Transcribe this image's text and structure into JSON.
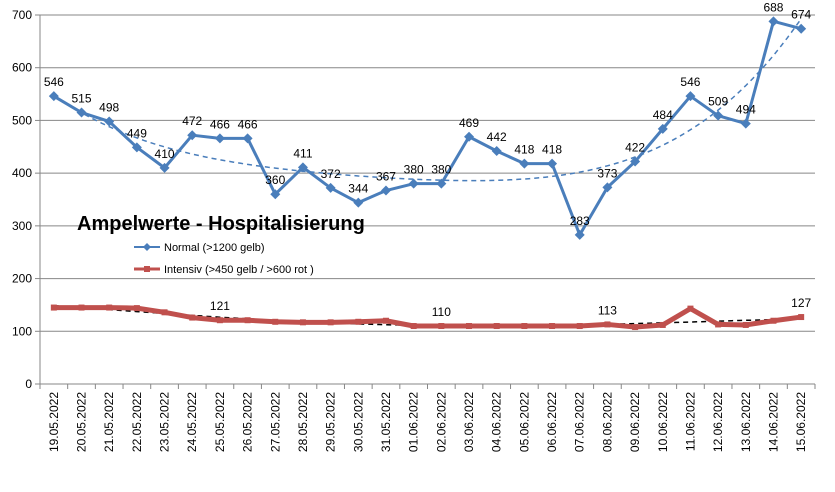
{
  "chart_data": {
    "type": "line",
    "title": "Ampelwerte - Hospitalisierung",
    "ylim": [
      0,
      700
    ],
    "yticks": [
      0,
      100,
      200,
      300,
      400,
      500,
      600,
      700
    ],
    "grid": "horizontal",
    "legend_position": "left-center",
    "categories": [
      "19.05.2022",
      "20.05.2022",
      "21.05.2022",
      "22.05.2022",
      "23.05.2022",
      "24.05.2022",
      "25.05.2022",
      "26.05.2022",
      "27.05.2022",
      "28.05.2022",
      "29.05.2022",
      "30.05.2022",
      "31.05.2022",
      "01.06.2022",
      "02.06.2022",
      "03.06.2022",
      "04.06.2022",
      "05.06.2022",
      "06.06.2022",
      "07.06.2022",
      "08.06.2022",
      "09.06.2022",
      "10.06.2022",
      "11.06.2022",
      "12.06.2022",
      "13.06.2022",
      "14.06.2022",
      "15.06.2022"
    ],
    "series": [
      {
        "name": "Normal (>1200 gelb)",
        "color": "#4a7ebb",
        "marker": "diamond",
        "values": [
          546,
          515,
          498,
          449,
          410,
          472,
          466,
          466,
          360,
          411,
          372,
          344,
          367,
          380,
          380,
          469,
          442,
          418,
          418,
          283,
          373,
          422,
          484,
          546,
          509,
          494,
          688,
          674
        ],
        "labels": [
          "546",
          "515",
          "498",
          "449",
          "410",
          "472",
          "466",
          "466",
          "360",
          "411",
          "372",
          "344",
          "367",
          "380",
          "380",
          "469",
          "442",
          "418",
          "418",
          "283",
          "373",
          "422",
          "484",
          "546",
          "509",
          "494",
          "688",
          "674"
        ]
      },
      {
        "name": "Intensiv (>450 gelb / >600 rot )",
        "color": "#c0504d",
        "marker": "square",
        "values": [
          145,
          145,
          145,
          144,
          136,
          126,
          121,
          121,
          118,
          117,
          117,
          118,
          120,
          110,
          110,
          110,
          110,
          110,
          110,
          110,
          113,
          108,
          112,
          143,
          113,
          112,
          120,
          127
        ],
        "labels": [
          "",
          "",
          "",
          "",
          "",
          "",
          "121",
          "",
          "",
          "",
          "",
          "",
          "",
          "",
          "110",
          "",
          "",
          "",
          "",
          "",
          "113",
          "",
          "",
          "",
          "",
          "",
          "",
          "127"
        ]
      }
    ],
    "trendlines": [
      {
        "series": "Normal (>1200 gelb)",
        "color": "#4a7ebb",
        "style": "dashed"
      },
      {
        "series": "Intensiv (>450 gelb / >600 rot )",
        "color": "#000000",
        "style": "dashed"
      }
    ]
  }
}
